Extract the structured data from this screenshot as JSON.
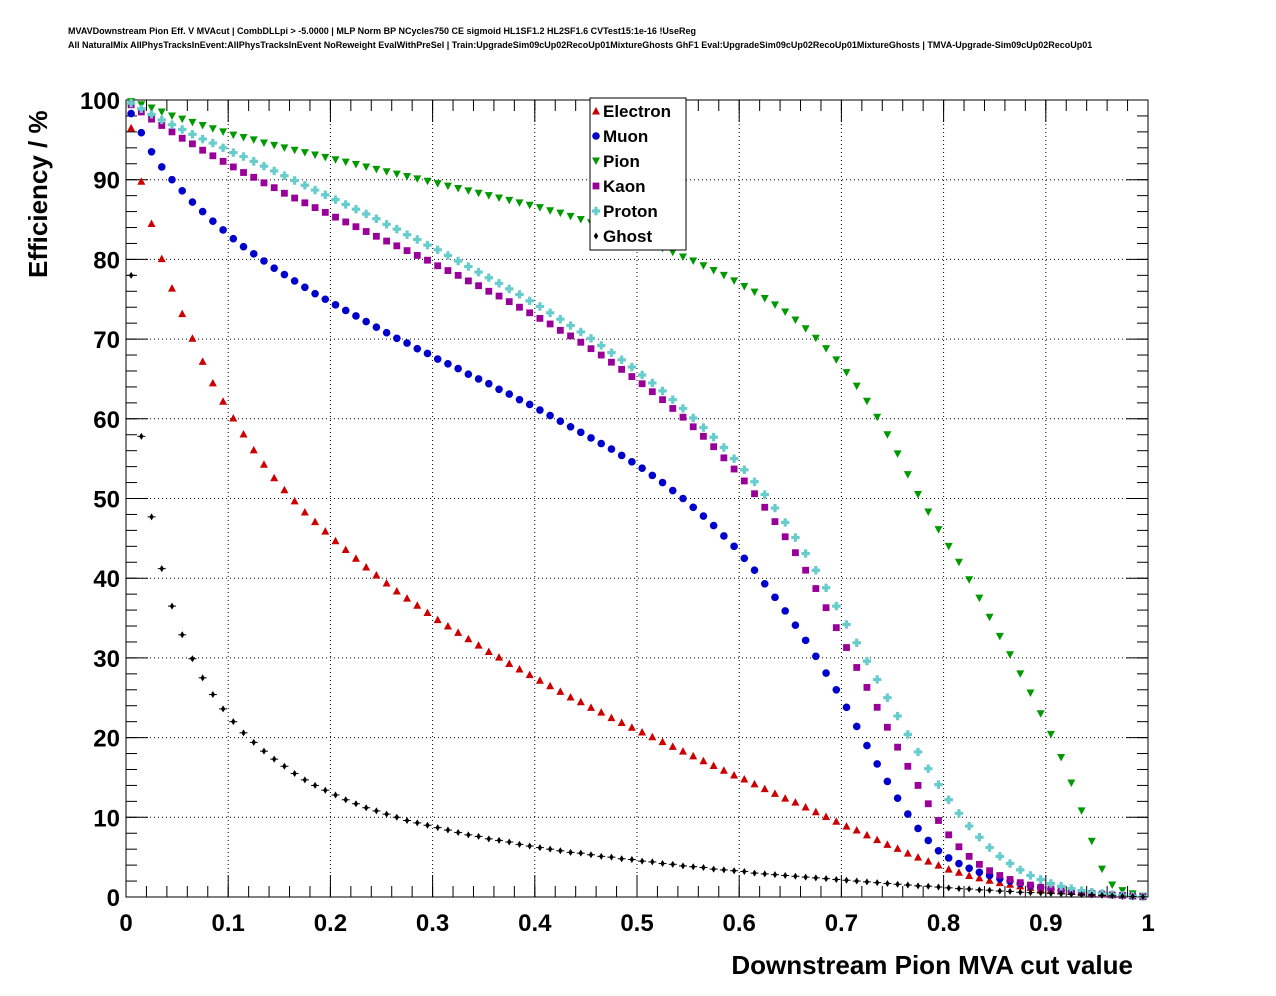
{
  "header": {
    "title_line1": "MVAVDownstream Pion Eff. V MVAcut | CombDLLpi > -5.0000 | MLP Norm BP NCycles750 CE sigmoid HL1SF1.2 HL2SF1.6 CVTest15:1e-16 !UseReg",
    "title_line2": "All NaturalMix AllPhysTracksInEvent:AllPhysTracksInEvent NoReweight EvalWithPreSel | Train:UpgradeSim09cUp02RecoUp01MixtureGhosts GhF1 Eval:UpgradeSim09cUp02RecoUp01MixtureGhosts | TMVA-Upgrade-Sim09cUp02RecoUp01"
  },
  "chart_data": {
    "type": "scatter",
    "xlabel": "Downstream Pion MVA cut value",
    "ylabel": "Efficiency / %",
    "xlim": [
      0,
      1
    ],
    "ylim": [
      0,
      100
    ],
    "xticks": [
      "0",
      "0.1",
      "0.2",
      "0.3",
      "0.4",
      "0.5",
      "0.6",
      "0.7",
      "0.8",
      "0.9",
      "1"
    ],
    "yticks": [
      "0",
      "10",
      "20",
      "30",
      "40",
      "50",
      "60",
      "70",
      "80",
      "90",
      "100"
    ],
    "grid": true,
    "legend_position": "top-center",
    "x": [
      0.005,
      0.015,
      0.025,
      0.035,
      0.045,
      0.055,
      0.065,
      0.075,
      0.085,
      0.095,
      0.105,
      0.115,
      0.125,
      0.135,
      0.145,
      0.155,
      0.165,
      0.175,
      0.185,
      0.195,
      0.205,
      0.215,
      0.225,
      0.235,
      0.245,
      0.255,
      0.265,
      0.275,
      0.285,
      0.295,
      0.305,
      0.315,
      0.325,
      0.335,
      0.345,
      0.355,
      0.365,
      0.375,
      0.385,
      0.395,
      0.405,
      0.415,
      0.425,
      0.435,
      0.445,
      0.455,
      0.465,
      0.475,
      0.485,
      0.495,
      0.505,
      0.515,
      0.525,
      0.535,
      0.545,
      0.555,
      0.565,
      0.575,
      0.585,
      0.595,
      0.605,
      0.615,
      0.625,
      0.635,
      0.645,
      0.655,
      0.665,
      0.675,
      0.685,
      0.695,
      0.705,
      0.715,
      0.725,
      0.735,
      0.745,
      0.755,
      0.765,
      0.775,
      0.785,
      0.795,
      0.805,
      0.815,
      0.825,
      0.835,
      0.845,
      0.855,
      0.865,
      0.875,
      0.885,
      0.895,
      0.905,
      0.915,
      0.925,
      0.935,
      0.945,
      0.955,
      0.965,
      0.975,
      0.985,
      0.995
    ],
    "series": [
      {
        "name": "Electron",
        "color": "#cc0000",
        "marker": "triangle-up",
        "values": [
          96.5,
          89.8,
          84.5,
          80.1,
          76.4,
          73.2,
          70.1,
          67.2,
          64.5,
          62.2,
          60.1,
          58.1,
          56.1,
          54.3,
          52.6,
          51.1,
          49.7,
          48.3,
          47.1,
          45.9,
          44.7,
          43.6,
          42.5,
          41.4,
          40.4,
          39.4,
          38.4,
          37.5,
          36.6,
          35.7,
          34.8,
          34.0,
          33.2,
          32.4,
          31.6,
          30.8,
          30.1,
          29.3,
          28.6,
          27.9,
          27.2,
          26.5,
          25.8,
          25.1,
          24.5,
          23.8,
          23.2,
          22.5,
          21.9,
          21.3,
          20.7,
          20.1,
          19.5,
          18.9,
          18.3,
          17.7,
          17.1,
          16.5,
          15.9,
          15.3,
          14.8,
          14.2,
          13.6,
          13.0,
          12.4,
          11.9,
          11.3,
          10.7,
          10.1,
          9.5,
          8.9,
          8.4,
          7.8,
          7.2,
          6.6,
          6.1,
          5.5,
          5.0,
          4.5,
          4.0,
          3.5,
          3.1,
          2.7,
          2.4,
          2.1,
          1.8,
          1.6,
          1.4,
          1.2,
          1.0,
          0.9,
          0.8,
          0.7,
          0.6,
          0.5,
          0.4,
          0.3,
          0.25,
          0.15,
          0.05
        ]
      },
      {
        "name": "Muon",
        "color": "#0000cc",
        "marker": "circle",
        "values": [
          98.3,
          95.9,
          93.5,
          91.6,
          90.0,
          88.6,
          87.2,
          86.0,
          84.8,
          83.7,
          82.6,
          81.6,
          80.7,
          79.8,
          78.9,
          78.1,
          77.3,
          76.5,
          75.7,
          75.0,
          74.3,
          73.6,
          72.9,
          72.2,
          71.5,
          70.8,
          70.1,
          69.5,
          68.8,
          68.2,
          67.5,
          66.9,
          66.3,
          65.6,
          65.0,
          64.4,
          63.7,
          63.1,
          62.4,
          61.8,
          61.1,
          60.4,
          59.7,
          59.0,
          58.3,
          57.6,
          56.9,
          56.2,
          55.4,
          54.6,
          53.8,
          52.9,
          52.0,
          51.0,
          50.0,
          48.9,
          47.8,
          46.6,
          45.3,
          44.0,
          42.5,
          41.0,
          39.3,
          37.6,
          35.9,
          34.1,
          32.2,
          30.2,
          28.1,
          26.0,
          23.8,
          21.4,
          19.0,
          16.7,
          14.5,
          12.4,
          10.4,
          8.6,
          7.1,
          5.8,
          4.9,
          4.2,
          3.6,
          3.1,
          2.7,
          2.3,
          2.0,
          1.7,
          1.4,
          1.2,
          1.0,
          0.8,
          0.7,
          0.6,
          0.5,
          0.4,
          0.3,
          0.2,
          0.15,
          0.05
        ]
      },
      {
        "name": "Pion",
        "color": "#009900",
        "marker": "triangle-down",
        "values": [
          99.8,
          99.4,
          99.0,
          98.5,
          98.0,
          97.6,
          97.2,
          96.8,
          96.4,
          96.0,
          95.6,
          95.3,
          95.0,
          94.6,
          94.3,
          94.0,
          93.7,
          93.4,
          93.1,
          92.8,
          92.5,
          92.2,
          91.9,
          91.6,
          91.3,
          91.0,
          90.7,
          90.4,
          90.1,
          89.8,
          89.5,
          89.2,
          88.9,
          88.6,
          88.3,
          88.0,
          87.7,
          87.4,
          87.1,
          86.8,
          86.5,
          86.1,
          85.8,
          85.4,
          85.0,
          84.6,
          84.2,
          83.8,
          83.4,
          82.9,
          82.4,
          81.9,
          81.4,
          80.9,
          80.3,
          79.8,
          79.2,
          78.6,
          78.0,
          77.3,
          76.6,
          75.9,
          75.1,
          74.3,
          73.4,
          72.4,
          71.3,
          70.1,
          68.8,
          67.4,
          65.8,
          64.1,
          62.2,
          60.2,
          58.0,
          55.6,
          53.0,
          50.5,
          48.3,
          46.1,
          44.0,
          42.0,
          39.8,
          37.5,
          35.1,
          32.7,
          30.4,
          28.0,
          25.6,
          23.0,
          20.4,
          17.5,
          14.3,
          10.8,
          7.0,
          3.5,
          1.5,
          0.8,
          0.4,
          0.1
        ]
      },
      {
        "name": "Kaon",
        "color": "#990099",
        "marker": "square",
        "values": [
          99.4,
          98.5,
          97.6,
          96.8,
          96.0,
          95.2,
          94.5,
          93.7,
          93.0,
          92.3,
          91.6,
          90.9,
          90.3,
          89.6,
          89.0,
          88.3,
          87.7,
          87.1,
          86.5,
          85.9,
          85.3,
          84.7,
          84.1,
          83.5,
          82.9,
          82.3,
          81.7,
          81.1,
          80.5,
          79.9,
          79.2,
          78.6,
          78.0,
          77.3,
          76.7,
          76.0,
          75.4,
          74.7,
          74.0,
          73.3,
          72.6,
          71.9,
          71.1,
          70.4,
          69.6,
          68.8,
          68.0,
          67.1,
          66.2,
          65.3,
          64.4,
          63.4,
          62.4,
          61.3,
          60.2,
          59.0,
          57.8,
          56.5,
          55.1,
          53.7,
          52.2,
          50.6,
          48.9,
          47.1,
          45.2,
          43.2,
          41.0,
          38.7,
          36.3,
          33.8,
          31.3,
          28.8,
          26.3,
          23.8,
          21.3,
          18.8,
          16.4,
          14.0,
          11.7,
          9.6,
          7.8,
          6.3,
          5.1,
          4.1,
          3.3,
          2.7,
          2.2,
          1.8,
          1.5,
          1.2,
          1.0,
          0.8,
          0.7,
          0.55,
          0.45,
          0.35,
          0.25,
          0.2,
          0.12,
          0.05
        ]
      },
      {
        "name": "Proton",
        "color": "#66cccc",
        "marker": "cross",
        "values": [
          99.6,
          98.9,
          98.2,
          97.5,
          96.9,
          96.3,
          95.7,
          95.1,
          94.6,
          94.0,
          93.4,
          92.9,
          92.3,
          91.7,
          91.1,
          90.5,
          89.9,
          89.3,
          88.7,
          88.1,
          87.5,
          86.9,
          86.3,
          85.7,
          85.1,
          84.4,
          83.8,
          83.1,
          82.5,
          81.8,
          81.2,
          80.5,
          79.8,
          79.1,
          78.4,
          77.7,
          77.0,
          76.3,
          75.6,
          74.8,
          74.1,
          73.3,
          72.5,
          71.7,
          70.9,
          70.1,
          69.2,
          68.3,
          67.4,
          66.5,
          65.5,
          64.5,
          63.5,
          62.4,
          61.3,
          60.1,
          58.9,
          57.7,
          56.4,
          55.0,
          53.6,
          52.1,
          50.5,
          48.8,
          47.0,
          45.1,
          43.1,
          41.0,
          38.8,
          36.5,
          34.2,
          31.9,
          29.6,
          27.3,
          25.0,
          22.7,
          20.4,
          18.2,
          16.1,
          14.1,
          12.2,
          10.5,
          8.9,
          7.5,
          6.2,
          5.1,
          4.2,
          3.4,
          2.7,
          2.2,
          1.7,
          1.35,
          1.05,
          0.8,
          0.6,
          0.45,
          0.3,
          0.2,
          0.12,
          0.05
        ]
      },
      {
        "name": "Ghost",
        "color": "#000000",
        "marker": "diamond",
        "values": [
          78.0,
          57.8,
          47.7,
          41.2,
          36.5,
          32.9,
          29.9,
          27.5,
          25.4,
          23.6,
          22.0,
          20.6,
          19.4,
          18.3,
          17.3,
          16.4,
          15.5,
          14.7,
          14.0,
          13.4,
          12.8,
          12.2,
          11.7,
          11.2,
          10.8,
          10.4,
          10.0,
          9.6,
          9.3,
          9.0,
          8.7,
          8.4,
          8.1,
          7.8,
          7.6,
          7.3,
          7.1,
          6.9,
          6.6,
          6.4,
          6.2,
          6.0,
          5.8,
          5.6,
          5.5,
          5.3,
          5.1,
          5.0,
          4.8,
          4.7,
          4.5,
          4.4,
          4.2,
          4.1,
          3.9,
          3.8,
          3.7,
          3.5,
          3.4,
          3.3,
          3.2,
          3.0,
          2.9,
          2.8,
          2.7,
          2.6,
          2.5,
          2.4,
          2.3,
          2.2,
          2.1,
          2.0,
          1.9,
          1.8,
          1.7,
          1.6,
          1.5,
          1.4,
          1.35,
          1.25,
          1.15,
          1.05,
          1.0,
          0.9,
          0.85,
          0.75,
          0.7,
          0.6,
          0.55,
          0.5,
          0.45,
          0.4,
          0.35,
          0.3,
          0.25,
          0.2,
          0.15,
          0.1,
          0.07,
          0.03
        ]
      }
    ]
  }
}
